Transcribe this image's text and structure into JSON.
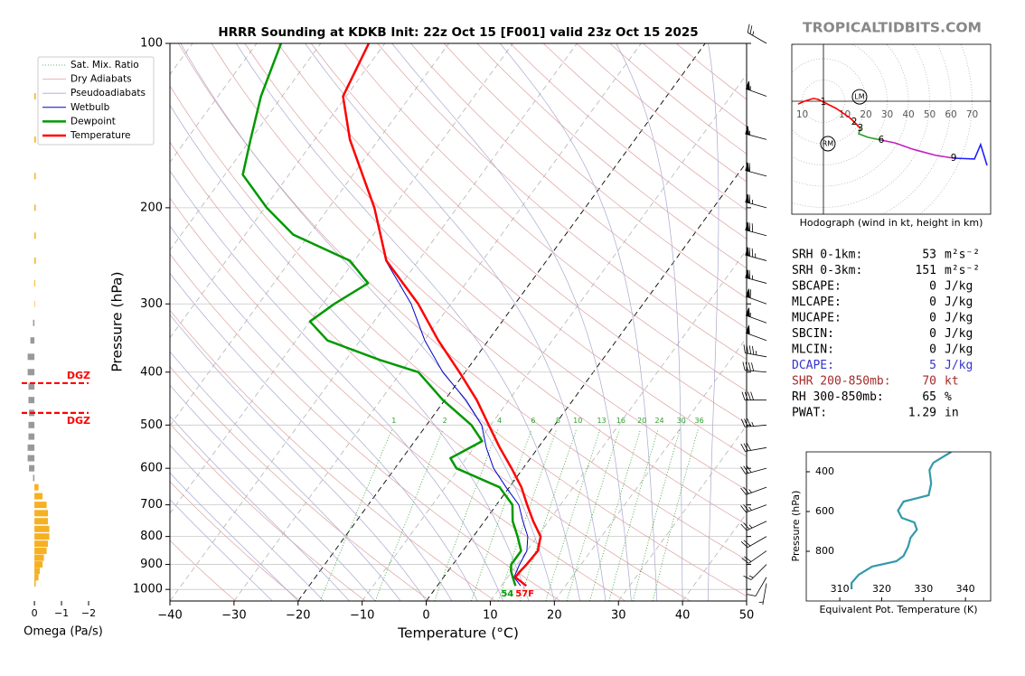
{
  "chart_data": [
    {
      "type": "skewt",
      "title": "HRRR Sounding at KDKB Init: 22z Oct 15 [F001] valid 23z Oct 15 2025",
      "watermark": "TROPICALTIDBITS.COM",
      "xlabel": "Temperature (°C)",
      "ylabel": "Pressure (hPa)",
      "xlim": [
        -40,
        50
      ],
      "xticks": [
        {
          "value": -40,
          "label": "−40"
        },
        {
          "value": -30,
          "label": "−30"
        },
        {
          "value": -20,
          "label": "−20"
        },
        {
          "value": -10,
          "label": "−10"
        },
        0,
        10,
        20,
        30,
        40,
        50
      ],
      "ylim": [
        1050,
        100
      ],
      "log_y": true,
      "yticks": [
        100,
        200,
        300,
        400,
        500,
        600,
        700,
        800,
        900,
        1000
      ],
      "background_lines": [
        {
          "name": "Sat. Mix. Ratio",
          "color": "#2ca02c",
          "values": [
            1,
            2,
            4,
            6,
            8,
            10,
            13,
            16,
            20,
            24,
            30,
            36
          ]
        },
        {
          "name": "Dry Adiabats",
          "color": "#e0a0a0"
        },
        {
          "name": "Pseudoadiabats",
          "color": "#a8a8d0"
        }
      ],
      "series": [
        {
          "name": "Wetbulb",
          "color": "#0000cc",
          "pressures": [
            985,
            950,
            900,
            850,
            800,
            750,
            700,
            650,
            600,
            550,
            500,
            450,
            400,
            350,
            300,
            250,
            200
          ],
          "values": [
            13,
            11,
            10.4,
            10,
            8.5,
            6,
            3.5,
            -0.5,
            -4.6,
            -8.1,
            -11.4,
            -16.7,
            -23.5,
            -29.9,
            -36.2,
            -45.1,
            -52.9
          ]
        },
        {
          "name": "Dewpoint",
          "color": "#009900",
          "pressures": [
            985,
            950,
            925,
            900,
            850,
            800,
            750,
            700,
            650,
            600,
            575,
            535,
            500,
            450,
            400,
            380,
            350,
            323,
            300,
            275,
            250,
            224,
            200,
            174,
            150,
            125,
            100
          ],
          "values": [
            12.2,
            10.8,
            9.8,
            9.1,
            9.1,
            6.9,
            4.4,
            2.5,
            -1.5,
            -10.4,
            -12.5,
            -9.5,
            -13,
            -20.3,
            -27.3,
            -34.7,
            -45.1,
            -50,
            -48.2,
            -45.3,
            -50.7,
            -62.5,
            -69.7,
            -77.2,
            -80,
            -83.3,
            -86.2
          ]
        },
        {
          "name": "Temperature",
          "color": "#ff0000",
          "pressures": [
            985,
            950,
            925,
            900,
            850,
            800,
            750,
            700,
            650,
            600,
            550,
            500,
            450,
            400,
            350,
            300,
            250,
            200,
            150,
            125,
            100
          ],
          "values": [
            13.9,
            11.2,
            11.3,
            11.5,
            11.7,
            10.5,
            7.6,
            4.8,
            1.9,
            -1.8,
            -6,
            -10.3,
            -15,
            -20.9,
            -27.8,
            -35.1,
            -45,
            -52.9,
            -64.5,
            -70.5,
            -72.5
          ]
        }
      ],
      "surface_labels": {
        "dewpoint": 54,
        "temperature": {
          "value": 57,
          "label": "57F"
        }
      },
      "winds": {
        "pressures": [
          100,
          125,
          150,
          175,
          200,
          225,
          250,
          275,
          300,
          325,
          350,
          375,
          400,
          450,
          500,
          550,
          600,
          650,
          700,
          750,
          800,
          850,
          900,
          950,
          975
        ],
        "speed": [
          25,
          55,
          55,
          60,
          65,
          70,
          75,
          65,
          60,
          55,
          50,
          45,
          40,
          40,
          35,
          30,
          30,
          25,
          25,
          25,
          20,
          20,
          15,
          10,
          5
        ],
        "direction": [
          300,
          290,
          285,
          285,
          285,
          285,
          285,
          285,
          290,
          290,
          290,
          280,
          275,
          270,
          265,
          260,
          255,
          250,
          250,
          245,
          240,
          235,
          225,
          210,
          190
        ]
      }
    },
    {
      "type": "omega_bar",
      "xlabel": "Omega (Pa/s)",
      "xlim": [
        0.47,
        -2.4
      ],
      "xticks": [
        0,
        {
          "value": -1,
          "label": "−1"
        },
        {
          "value": -2,
          "label": "−2"
        }
      ],
      "pressures": [
        125,
        150,
        175,
        200,
        225,
        250,
        275,
        300,
        325,
        350,
        375,
        400,
        425,
        450,
        475,
        500,
        525,
        550,
        575,
        600,
        625,
        650,
        675,
        700,
        725,
        750,
        775,
        800,
        825,
        850,
        875,
        900,
        925,
        950,
        975
      ],
      "values": [
        -0.05,
        -0.05,
        -0.05,
        -0.05,
        -0.05,
        -0.05,
        -0.03,
        -0.02,
        0.05,
        0.15,
        0.25,
        0.25,
        0.22,
        0.22,
        0.2,
        0.22,
        0.22,
        0.25,
        0.25,
        0.2,
        0.05,
        -0.15,
        -0.3,
        -0.45,
        -0.5,
        -0.5,
        -0.55,
        -0.55,
        -0.5,
        -0.45,
        -0.35,
        -0.3,
        -0.2,
        -0.15,
        -0.05
      ],
      "colors": {
        "ascent": "#f7b021",
        "descent": "#999999"
      },
      "dgz": {
        "label": "DGZ",
        "pressures": [
          419,
          475
        ],
        "color": "#ff0000"
      }
    },
    {
      "type": "hodograph",
      "caption": "Hodograph (wind in kt, height in km)",
      "rings": [
        10,
        20,
        30,
        40,
        50,
        60,
        70
      ],
      "u": [
        -11.9,
        -9,
        -4.7,
        -2.6,
        0,
        6,
        12.3,
        14.5,
        17.4,
        16.6,
        20.9,
        27.2,
        33.6,
        42.1,
        52.8,
        61.3,
        71.1,
        74,
        77
      ],
      "v": [
        -1.3,
        0,
        1.3,
        0.9,
        -0.4,
        -3.4,
        -7.7,
        -9.8,
        -12.8,
        -15.3,
        -17,
        -18.3,
        -19.6,
        -22.6,
        -25.5,
        -26.8,
        -27.2,
        -20.4,
        -30.2
      ],
      "heights": [
        0,
        0.25,
        0.5,
        0.75,
        1,
        1.5,
        1.8,
        2,
        3,
        3.5,
        5,
        6,
        6.5,
        7,
        8,
        9,
        10,
        11,
        12
      ],
      "height_labels": [
        1,
        2,
        3,
        6,
        9
      ],
      "segments": [
        {
          "top": 3,
          "color": "#ff0000"
        },
        {
          "top": 6,
          "color": "#22a022"
        },
        {
          "top": 9,
          "color": "#c020c0"
        },
        {
          "top": 12,
          "color": "#2020ff"
        }
      ],
      "storm_motion": [
        {
          "label": "LM",
          "u": 17,
          "v": 2.1
        },
        {
          "label": "RM",
          "u": 2.1,
          "v": -20
        }
      ]
    },
    {
      "type": "line",
      "xlabel": "Equivalent Pot. Temperature (K)",
      "ylabel": "Pressure (hPa)",
      "xlim": [
        302,
        346
      ],
      "xticks": [
        310,
        320,
        330,
        340
      ],
      "ylim": [
        1050,
        300
      ],
      "yticks": [
        400,
        600,
        800
      ],
      "color": "#3399aa",
      "values": [
        336.6,
        332.3,
        331.4,
        331.8,
        331.2,
        325.2,
        323.9,
        324.8,
        327.8,
        328.4,
        326.9,
        326.3,
        325.2,
        323.5,
        317.7,
        314.5,
        312.8,
        312.8
      ],
      "pressures": [
        300,
        355,
        391,
        459,
        518,
        550,
        595,
        632,
        655,
        691,
        732,
        777,
        823,
        850,
        877,
        918,
        959,
        991
      ]
    }
  ],
  "stats": {
    "rows": [
      {
        "label": "SRH 0-1km:",
        "value": 53,
        "unit": "m²s⁻²"
      },
      {
        "label": "SRH 0-3km:",
        "value": 151,
        "unit": "m²s⁻²"
      },
      {
        "label": "SBCAPE:",
        "value": 0,
        "unit": "J/kg"
      },
      {
        "label": "MLCAPE:",
        "value": 0,
        "unit": "J/kg"
      },
      {
        "label": "MUCAPE:",
        "value": 0,
        "unit": "J/kg"
      },
      {
        "label": "SBCIN:",
        "value": 0,
        "unit": "J/kg"
      },
      {
        "label": "MLCIN:",
        "value": 0,
        "unit": "J/kg"
      },
      {
        "label": "DCAPE:",
        "value": 5,
        "unit": "J/kg",
        "color": "#3333cc"
      },
      {
        "label": "SHR 200-850mb:",
        "value": 70,
        "unit": "kt",
        "color": "#a52a2a"
      },
      {
        "label": "RH 300-850mb:",
        "value": 65,
        "unit": "%"
      },
      {
        "label": "PWAT:",
        "value": 1.29,
        "unit": "in"
      }
    ]
  }
}
